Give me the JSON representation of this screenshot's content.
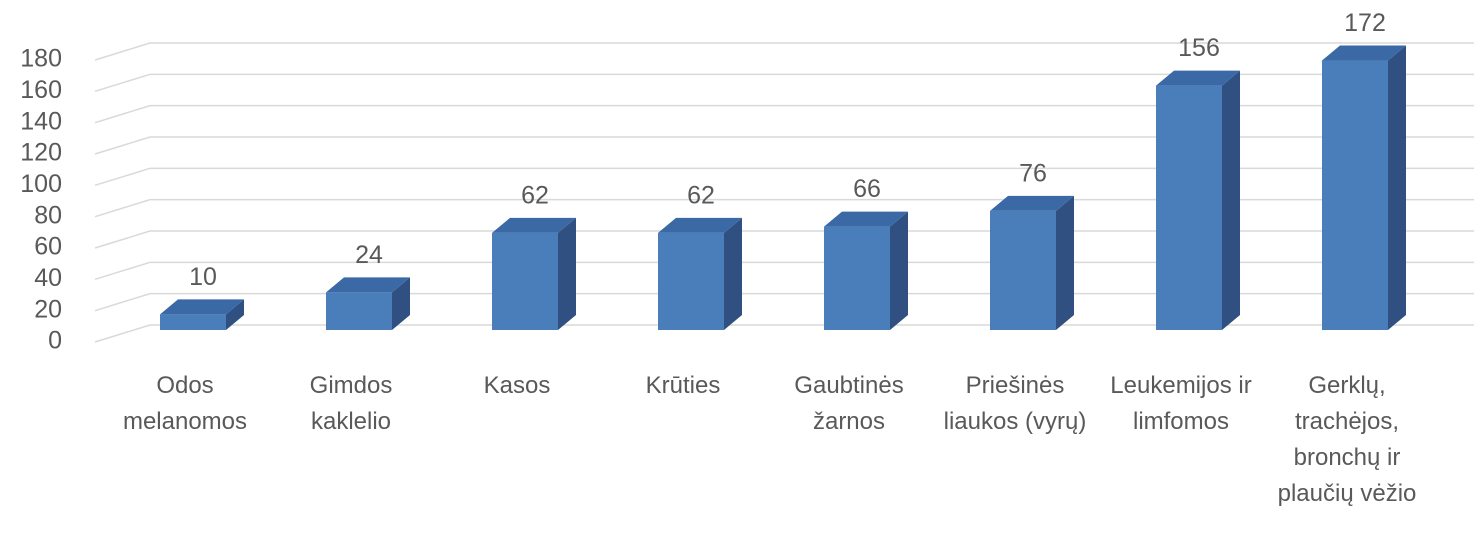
{
  "chart_data": {
    "type": "bar3d",
    "categories": [
      "Odos melanomos",
      "Gimdos kaklelio",
      "Kasos",
      "Krūties",
      "Gaubtinės žarnos",
      "Priešinės liaukos (vyrų)",
      "Leukemijos ir limfomos",
      "Gerklų, trachėjos, bronchų ir plaučių vėžio"
    ],
    "values": [
      10,
      24,
      62,
      62,
      66,
      76,
      156,
      172
    ],
    "color": "#4a7ebb",
    "ylim": [
      0,
      180
    ],
    "yticks": [
      0,
      20,
      40,
      60,
      80,
      100,
      120,
      140,
      160,
      180
    ],
    "grid": true
  }
}
